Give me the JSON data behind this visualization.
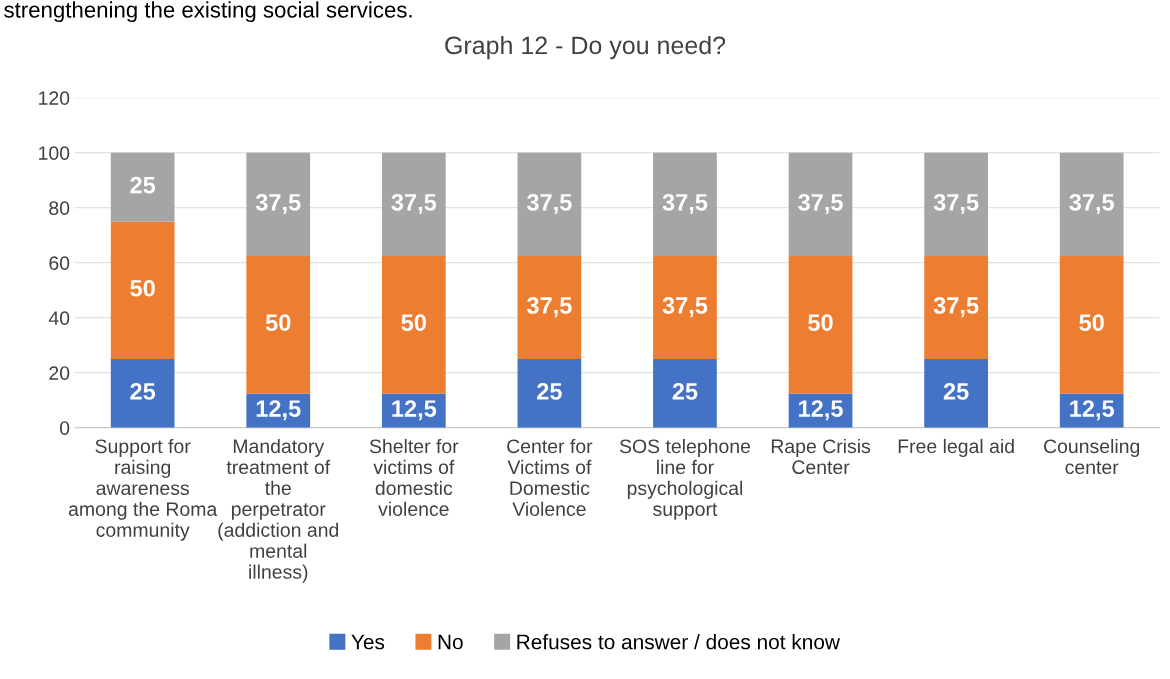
{
  "chart_data": {
    "type": "bar",
    "title": "Graph 12 - Do you need?",
    "stacked": true,
    "categories": [
      "Support for raising awareness among the Roma community",
      "Mandatory treatment of the perpetrator (addiction and mental illness)",
      "Shelter for victims of domestic violence",
      "Center for Victims of Domestic Violence",
      "SOS telephone line for psychological support",
      "Rape Crisis Center",
      "Free legal aid",
      "Counseling center"
    ],
    "series": [
      {
        "name": "Yes",
        "color": "#4472c4",
        "values": [
          25,
          12.5,
          12.5,
          25,
          25,
          12.5,
          25,
          12.5
        ],
        "value_labels": [
          "25",
          "12,5",
          "12,5",
          "25",
          "25",
          "12,5",
          "25",
          "12,5"
        ]
      },
      {
        "name": "No",
        "color": "#ed7d31",
        "values": [
          50,
          50,
          50,
          37.5,
          37.5,
          50,
          37.5,
          50
        ],
        "value_labels": [
          "50",
          "50",
          "50",
          "37,5",
          "37,5",
          "50",
          "37,5",
          "50"
        ]
      },
      {
        "name": "Refuses to answer / does not know",
        "color": "#a5a5a5",
        "values": [
          25,
          37.5,
          37.5,
          37.5,
          37.5,
          37.5,
          37.5,
          37.5
        ],
        "value_labels": [
          "25",
          "37,5",
          "37,5",
          "37,5",
          "37,5",
          "37,5",
          "37,5",
          "37,5"
        ]
      }
    ],
    "ylim": [
      0,
      120
    ],
    "yticks": [
      0,
      20,
      40,
      60,
      80,
      100,
      120
    ],
    "grid": "y",
    "legend": "bottom",
    "annotations": [
      "strengthening the existing social services."
    ]
  }
}
